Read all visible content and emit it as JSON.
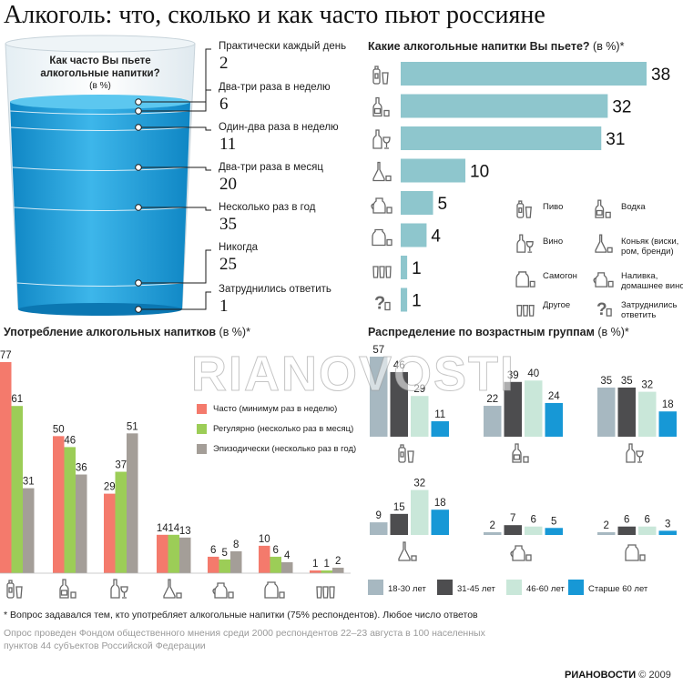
{
  "title": "Алкоголь: что, сколько и как часто пьют россияне",
  "colors": {
    "water": "#1a9fd8",
    "teal": "#8ec6cd",
    "often": "#f47a6c",
    "regular": "#9ccd57",
    "episodic": "#a49e98",
    "age1": "#a7b8c1",
    "age2": "#4d4d4f",
    "age3": "#c9e7d9",
    "age4": "#1798d6"
  },
  "glass": {
    "question": "Как часто Вы пьете алкогольные напитки?",
    "unit": "(в %)"
  },
  "frequency": {
    "items": [
      {
        "label": "Практически каждый день",
        "value": "2"
      },
      {
        "label": "Два-три раза в неделю",
        "value": "6"
      },
      {
        "label": "Один-два раза в неделю",
        "value": "11"
      },
      {
        "label": "Два-три раза в месяц",
        "value": "20"
      },
      {
        "label": "Несколько раз в год",
        "value": "35"
      },
      {
        "label": "Никогда",
        "value": "25"
      },
      {
        "label": "Затруднились ответить",
        "value": "1"
      }
    ]
  },
  "drinks": {
    "title": "Какие алкогольные напитки Вы пьете?",
    "unit": "(в %)*",
    "legend": [
      {
        "icon": "beer-icon",
        "label": "Пиво"
      },
      {
        "icon": "vodka-icon",
        "label": "Водка"
      },
      {
        "icon": "wine-icon",
        "label": "Вино"
      },
      {
        "icon": "cognac-icon",
        "label": "Коньяк (виски, ром, бренди)"
      },
      {
        "icon": "samogon-icon",
        "label": "Самогон"
      },
      {
        "icon": "liqueur-icon",
        "label": "Наливка, домашнее вино"
      },
      {
        "icon": "other-icon",
        "label": "Другое"
      },
      {
        "icon": "unknown-icon",
        "label": "Затруднились ответить"
      }
    ]
  },
  "consumption": {
    "title": "Употребление алкогольных напитков",
    "unit": "(в %)*",
    "legend": [
      "Часто (минимум раз в неделю)",
      "Регулярно (несколько раз в месяц)",
      "Эпизодически (несколько раз в год)"
    ]
  },
  "age": {
    "title": "Распределение по возрастным группам",
    "unit": "(в %)*",
    "legend": [
      "18-30 лет",
      "31-45 лет",
      "46-60 лет",
      "Старше 60 лет"
    ]
  },
  "chart_data": [
    {
      "type": "bar",
      "title": "Как часто Вы пьете алкогольные напитки?",
      "ylabel": "(в %)",
      "categories": [
        "Практически каждый день",
        "Два-три раза в неделю",
        "Один-два раза в неделю",
        "Два-три раза в месяц",
        "Несколько раз в год",
        "Никогда",
        "Затруднились ответить"
      ],
      "values": [
        2,
        6,
        11,
        20,
        35,
        25,
        1
      ]
    },
    {
      "type": "bar",
      "title": "Какие алкогольные напитки Вы пьете?",
      "ylabel": "(в %)*",
      "orientation": "horizontal",
      "categories": [
        "Пиво",
        "Водка",
        "Вино",
        "Коньяк (виски, ром, бренди)",
        "Наливка, домашнее вино",
        "Самогон",
        "Другое",
        "Затруднились ответить"
      ],
      "values": [
        38,
        32,
        31,
        10,
        5,
        4,
        1,
        1
      ],
      "xlim": [
        0,
        38
      ]
    },
    {
      "type": "bar",
      "title": "Употребление алкогольных напитков",
      "ylabel": "(в %)*",
      "categories": [
        "Пиво",
        "Водка",
        "Вино",
        "Коньяк (виски, ром, бренди)",
        "Наливка, домашнее вино",
        "Самогон",
        "Другое"
      ],
      "series": [
        {
          "name": "Часто (минимум раз в неделю)",
          "values": [
            77,
            50,
            29,
            14,
            6,
            10,
            1
          ]
        },
        {
          "name": "Регулярно (несколько раз в месяц)",
          "values": [
            61,
            46,
            37,
            14,
            5,
            6,
            1
          ]
        },
        {
          "name": "Эпизодически (несколько раз в год)",
          "values": [
            31,
            36,
            51,
            13,
            8,
            4,
            2
          ]
        }
      ],
      "ylim": [
        0,
        77
      ]
    },
    {
      "type": "bar",
      "title": "Распределение по возрастным группам",
      "ylabel": "(в %)*",
      "categories": [
        "Пиво",
        "Водка",
        "Вино",
        "Коньяк (виски, ром, бренди)",
        "Наливка, домашнее вино",
        "Самогон"
      ],
      "series": [
        {
          "name": "18-30 лет",
          "values": [
            57,
            22,
            35,
            9,
            2,
            2
          ]
        },
        {
          "name": "31-45 лет",
          "values": [
            46,
            39,
            35,
            15,
            7,
            6
          ]
        },
        {
          "name": "46-60 лет",
          "values": [
            29,
            40,
            32,
            32,
            6,
            6
          ]
        },
        {
          "name": "Старше 60 лет",
          "values": [
            11,
            24,
            18,
            18,
            5,
            3
          ]
        }
      ],
      "ylim": [
        0,
        57
      ]
    }
  ],
  "footnote": "* Вопрос задавался тем, кто употребляет алкогольные напитки (75% респондентов). Любое число ответов",
  "source_note": "Опрос проведен Фондом общественного мнения среди 2000 респондентов 22–23 августа в 100 населенных пунктов 44 субъектов Российской Федерации",
  "watermark": "RIANOVOSTI",
  "brand": {
    "logo": "РИАНОВОСТИ",
    "year": "© 2009"
  }
}
